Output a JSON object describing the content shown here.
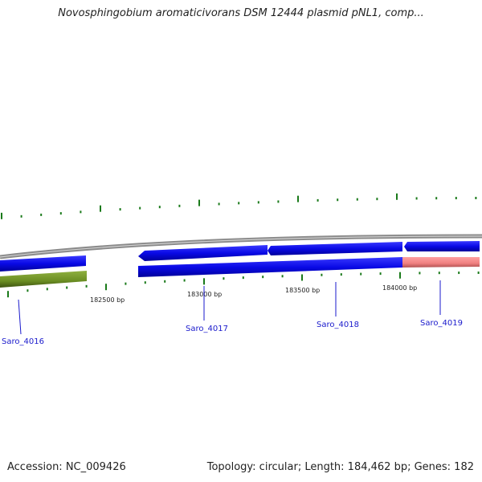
{
  "title": "Novosphingobium aromaticivorans DSM 12444 plasmid pNL1, comp...",
  "footer": {
    "accession": "Accession: NC_009426",
    "summary": "Topology: circular; Length: 184,462 bp; Genes: 182"
  },
  "colors": {
    "backbone": "#8a8a8a",
    "cds_forward": "#0a0ae6",
    "cds_reverse": "#6b8e23",
    "feature_pink": "#f08080",
    "gc_ticks": "#1a7a1a",
    "gene_labels": "#1a1acc"
  },
  "ruler": [
    {
      "text": "182500 bp"
    },
    {
      "text": "183000 bp"
    },
    {
      "text": "183500 bp"
    },
    {
      "text": "184000 bp"
    }
  ],
  "genes": [
    {
      "name": "Saro_4016"
    },
    {
      "name": "Saro_4017"
    },
    {
      "name": "Saro_4018"
    },
    {
      "name": "Saro_4019"
    }
  ]
}
